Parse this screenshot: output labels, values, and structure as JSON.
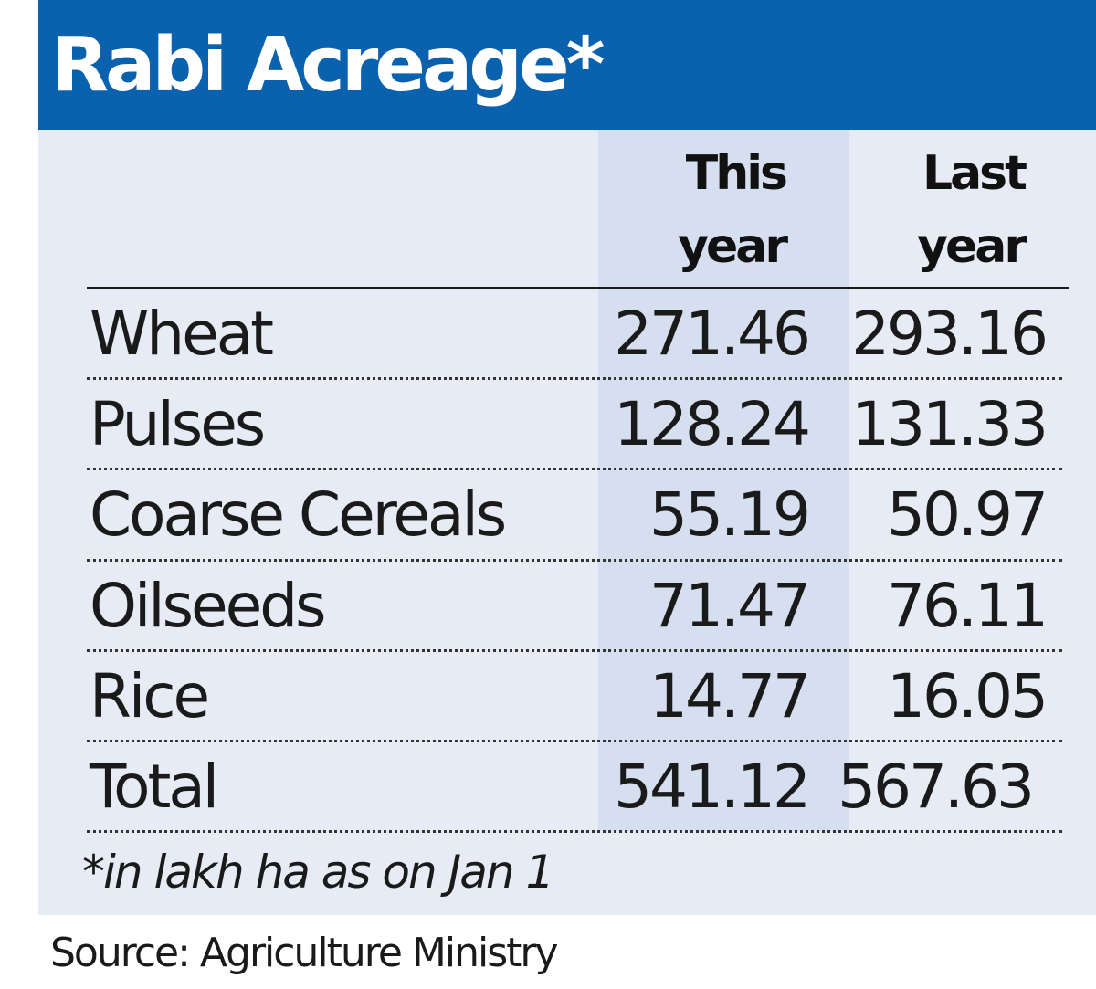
{
  "title": "Rabi Acreage*",
  "columns": {
    "this_year": "This year",
    "last_year": "Last year"
  },
  "chart_data": {
    "type": "table",
    "title": "Rabi Acreage*",
    "columns": [
      "This year",
      "Last year"
    ],
    "rows": [
      {
        "label": "Wheat",
        "this_year": "271.46",
        "last_year": "293.16"
      },
      {
        "label": "Pulses",
        "this_year": "128.24",
        "last_year": "131.33"
      },
      {
        "label": "Coarse Cereals",
        "this_year": "55.19",
        "last_year": "50.97"
      },
      {
        "label": "Oilseeds",
        "this_year": "71.47",
        "last_year": "76.11"
      },
      {
        "label": "Rice",
        "this_year": "14.77",
        "last_year": "16.05"
      },
      {
        "label": "Total",
        "this_year": "541.12",
        "last_year": "567.63"
      }
    ],
    "footnote": "*in lakh ha as on Jan 1",
    "source": "Source: Agriculture Ministry"
  },
  "colors": {
    "title_bar": "#0a62ae",
    "panel": "#e7ebf5",
    "highlight_column": "#d6dfef",
    "text": "#1a1a1a"
  }
}
